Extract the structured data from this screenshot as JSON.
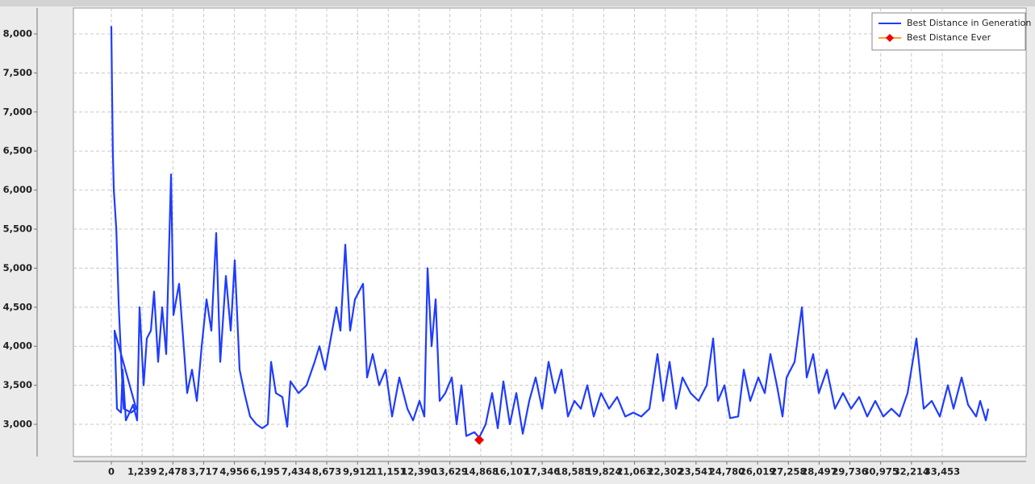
{
  "chart_data": {
    "type": "line",
    "grid": true,
    "legend_position": "upper right",
    "xlim": [
      -1527,
      36831
    ],
    "ylim": [
      2587,
      8331
    ],
    "xticks": [
      0,
      {
        "value": 1239,
        "label": "1,239"
      },
      {
        "value": 2478,
        "label": "2,478"
      },
      {
        "value": 3717,
        "label": "3,717"
      },
      {
        "value": 4956,
        "label": "4,956"
      },
      {
        "value": 6195,
        "label": "6,195"
      },
      {
        "value": 7434,
        "label": "7,434"
      },
      {
        "value": 8673,
        "label": "8,673"
      },
      {
        "value": 9912,
        "label": "9,912"
      },
      {
        "value": 11151,
        "label": "11,151"
      },
      {
        "value": 12390,
        "label": "12,390"
      },
      {
        "value": 13629,
        "label": "13,629"
      },
      {
        "value": 14868,
        "label": "14,868"
      },
      {
        "value": 16107,
        "label": "16,107"
      },
      {
        "value": 17346,
        "label": "17,346"
      },
      {
        "value": 18585,
        "label": "18,585"
      },
      {
        "value": 19824,
        "label": "19,824"
      },
      {
        "value": 21063,
        "label": "21,063"
      },
      {
        "value": 22302,
        "label": "22,302"
      },
      {
        "value": 23541,
        "label": "23,541"
      },
      {
        "value": 24780,
        "label": "24,780"
      },
      {
        "value": 26019,
        "label": "26,019"
      },
      {
        "value": 27258,
        "label": "27,258"
      },
      {
        "value": 28497,
        "label": "28,497"
      },
      {
        "value": 29736,
        "label": "29,736"
      },
      {
        "value": 30975,
        "label": "30,975"
      },
      {
        "value": 32214,
        "label": "32,214"
      },
      {
        "value": 33453,
        "label": "33,453"
      }
    ],
    "yticks": [
      {
        "value": 3000,
        "label": "3,000"
      },
      {
        "value": 3500,
        "label": "3,500"
      },
      {
        "value": 4000,
        "label": "4,000"
      },
      {
        "value": 4500,
        "label": "4,500"
      },
      {
        "value": 5000,
        "label": "5,000"
      },
      {
        "value": 5500,
        "label": "5,500"
      },
      {
        "value": 6000,
        "label": "6,000"
      },
      {
        "value": 6500,
        "label": "6,500"
      },
      {
        "value": 7000,
        "label": "7,000"
      },
      {
        "value": 7500,
        "label": "7,500"
      },
      {
        "value": 8000,
        "label": "8,000"
      }
    ],
    "series": [
      {
        "name": "Best Distance in Generation",
        "color": "#1f3cff",
        "x": [
          0,
          20,
          40,
          60,
          100,
          200,
          300,
          400,
          500,
          800,
          1000,
          130,
          227,
          390,
          455,
          585,
          877,
          1039,
          1137,
          1300,
          1429,
          1592,
          1721,
          1884,
          2046,
          2209,
          2404,
          2501,
          2728,
          2891,
          3053,
          3248,
          3443,
          3638,
          3833,
          4027,
          4222,
          4385,
          4612,
          4807,
          4969,
          5164,
          5359,
          5587,
          5846,
          6074,
          6301,
          6431,
          6626,
          6886,
          7081,
          7211,
          7535,
          7860,
          8185,
          8380,
          8607,
          8835,
          9062,
          9224,
          9419,
          9614,
          9809,
          10134,
          10296,
          10524,
          10783,
          11043,
          11303,
          11595,
          11920,
          12147,
          12407,
          12602,
          12732,
          12894,
          13057,
          13219,
          13447,
          13707,
          13901,
          14096,
          14291,
          14616,
          14811,
          15071,
          15331,
          15558,
          15785,
          16045,
          16305,
          16565,
          16825,
          17084,
          17344,
          17604,
          17864,
          18124,
          18384,
          18644,
          18903,
          19163,
          19423,
          19715,
          20040,
          20365,
          20690,
          21015,
          21339,
          21664,
          21989,
          22216,
          22476,
          22736,
          22996,
          23321,
          23645,
          23970,
          24230,
          24425,
          24685,
          24912,
          25237,
          25464,
          25724,
          26049,
          26309,
          26536,
          26796,
          27023,
          27186,
          27510,
          27803,
          27998,
          28257,
          28485,
          28810,
          29134,
          29459,
          29784,
          30109,
          30434,
          30758,
          31083,
          31408,
          31733,
          32058,
          32415,
          32707,
          33032,
          33357,
          33681,
          33909,
          34234,
          34494,
          34818,
          34981,
          35208,
          35306
        ],
        "values": [
          8100,
          7500,
          7000,
          6500,
          6000,
          5500,
          4500,
          3800,
          3200,
          3150,
          3200,
          4200,
          3200,
          3150,
          3700,
          3050,
          3250,
          3050,
          4500,
          3500,
          4100,
          4200,
          4700,
          3800,
          4500,
          3900,
          6200,
          4400,
          4800,
          4100,
          3400,
          3700,
          3300,
          4000,
          4600,
          4200,
          5450,
          3800,
          4900,
          4200,
          5100,
          3700,
          3400,
          3100,
          3000,
          2950,
          3000,
          3800,
          3400,
          3350,
          2970,
          3550,
          3400,
          3500,
          3800,
          4000,
          3700,
          4100,
          4500,
          4200,
          5300,
          4200,
          4600,
          4800,
          3600,
          3900,
          3500,
          3700,
          3100,
          3600,
          3200,
          3050,
          3300,
          3100,
          5000,
          4000,
          4600,
          3300,
          3400,
          3600,
          3000,
          3500,
          2850,
          2900,
          2830,
          3000,
          3400,
          2950,
          3550,
          3000,
          3400,
          2880,
          3300,
          3600,
          3200,
          3800,
          3400,
          3700,
          3100,
          3300,
          3200,
          3500,
          3100,
          3400,
          3200,
          3350,
          3100,
          3150,
          3100,
          3200,
          3900,
          3300,
          3800,
          3200,
          3600,
          3400,
          3300,
          3500,
          4100,
          3300,
          3500,
          3080,
          3100,
          3700,
          3300,
          3600,
          3400,
          3900,
          3500,
          3100,
          3600,
          3800,
          4500,
          3600,
          3900,
          3400,
          3700,
          3200,
          3400,
          3200,
          3350,
          3100,
          3300,
          3100,
          3200,
          3100,
          3400,
          4100,
          3200,
          3300,
          3100,
          3500,
          3200,
          3600,
          3250,
          3100,
          3300,
          3050,
          3200
        ]
      },
      {
        "name": "Best Distance Ever",
        "color": "#ffa030",
        "marker_color": "#ee0000",
        "x": [
          14811
        ],
        "values": [
          2800
        ]
      }
    ]
  }
}
